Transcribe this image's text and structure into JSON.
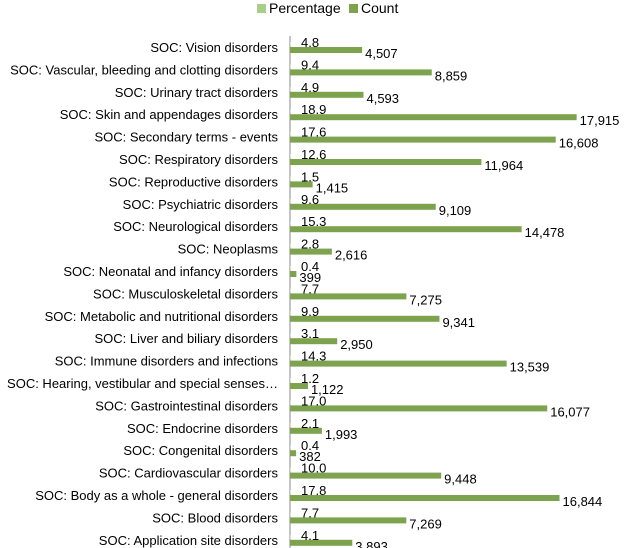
{
  "chart_data": {
    "type": "bar",
    "orientation": "horizontal",
    "legend": [
      "Percentage",
      "Count"
    ],
    "legend_position": "top-center",
    "categories": [
      "SOC: Vision disorders",
      "SOC: Vascular, bleeding and clotting disorders",
      "SOC: Urinary tract disorders",
      "SOC: Skin and appendages disorders",
      "SOC: Secondary terms - events",
      "SOC: Respiratory disorders",
      "SOC: Reproductive disorders",
      "SOC: Psychiatric disorders",
      "SOC: Neurological disorders",
      "SOC: Neoplasms",
      "SOC: Neonatal and infancy disorders",
      "SOC: Musculoskeletal disorders",
      "SOC: Metabolic and nutritional disorders",
      "SOC: Liver and biliary disorders",
      "SOC: Immune disorders and infections",
      "SOC: Hearing, vestibular and special senses…",
      "SOC: Gastrointestinal disorders",
      "SOC: Endocrine disorders",
      "SOC: Congenital disorders",
      "SOC: Cardiovascular disorders",
      "SOC: Body as a whole - general disorders",
      "SOC: Blood disorders",
      "SOC: Application site disorders"
    ],
    "series": [
      {
        "name": "Percentage",
        "color": "#a8cf8a",
        "values": [
          4.8,
          9.4,
          4.9,
          18.9,
          17.6,
          12.6,
          1.5,
          9.6,
          15.3,
          2.8,
          0.4,
          7.7,
          9.9,
          3.1,
          14.3,
          1.2,
          17.0,
          2.1,
          0.4,
          10.0,
          17.8,
          7.7,
          4.1
        ],
        "labels": [
          "4.8",
          "9.4",
          "4.9",
          "18.9",
          "17.6",
          "12.6",
          "1.5",
          "9.6",
          "15.3",
          "2.8",
          "0.4",
          "7.7",
          "9.9",
          "3.1",
          "14.3",
          "1.2",
          "17.0",
          "2.1",
          "0.4",
          "10.0",
          "17.8",
          "7.7",
          "4.1"
        ]
      },
      {
        "name": "Count",
        "color": "#7ea34e",
        "values": [
          4507,
          8859,
          4593,
          17915,
          16608,
          11964,
          1415,
          9109,
          14478,
          2616,
          399,
          7275,
          9341,
          2950,
          13539,
          1122,
          16077,
          1993,
          382,
          9448,
          16844,
          7269,
          3893
        ],
        "labels": [
          "4,507",
          "8,859",
          "4,593",
          "17,915",
          "16,608",
          "11,964",
          "1,415",
          "9,109",
          "14,478",
          "2,616",
          "399",
          "7,275",
          "9,341",
          "2,950",
          "13,539",
          "1,122",
          "16,077",
          "1,993",
          "382",
          "9,448",
          "16,844",
          "7,269",
          "3,893"
        ]
      }
    ],
    "xlim": [
      0,
      20000
    ]
  }
}
